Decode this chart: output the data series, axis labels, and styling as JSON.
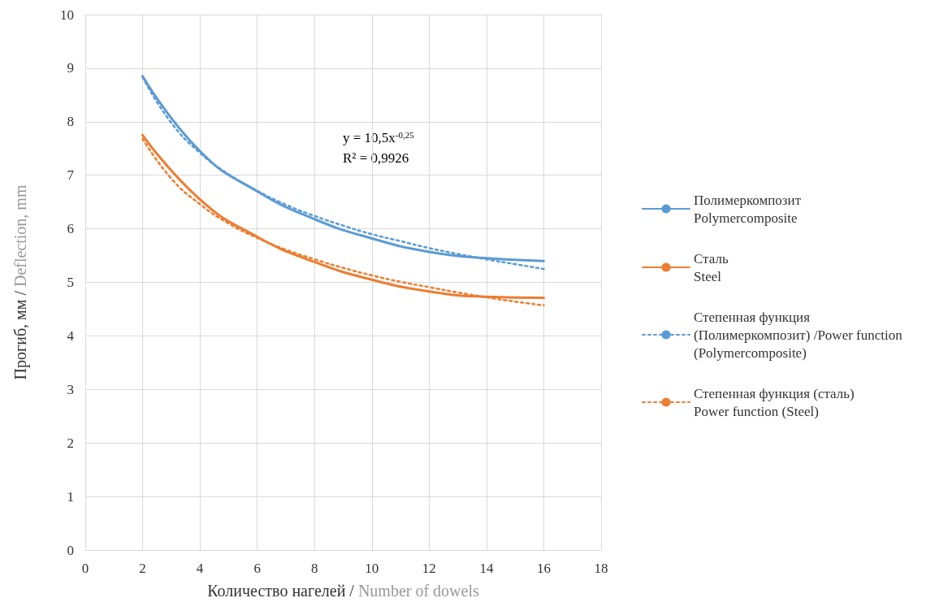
{
  "chart_data": {
    "type": "line",
    "xlabel": "Количество нагелей / Number of dowels",
    "ylabel": "Прогиб, мм / Deflection, mm",
    "xlim": [
      0,
      18
    ],
    "xticks": [
      0,
      2,
      4,
      6,
      8,
      10,
      12,
      14,
      16,
      18
    ],
    "ylim": [
      0,
      10
    ],
    "yticks": [
      0,
      1,
      2,
      3,
      4,
      5,
      6,
      7,
      8,
      9,
      10
    ],
    "grid": true,
    "legend": "right",
    "marker": "none",
    "annotations": [
      "y = 10,5x$^{-0,25}$",
      "R² = 0,9926"
    ],
    "series": [
      {
        "name": "Полимеркомпозит\nPolymercomposite",
        "color": "#5b9bd5",
        "line_style": "solid",
        "x": [
          2,
          4,
          6,
          8,
          10,
          12,
          14,
          16
        ],
        "values": [
          8.85,
          7.45,
          6.7,
          6.18,
          5.82,
          5.57,
          5.45,
          5.4
        ]
      },
      {
        "name": "Сталь\nSteel",
        "color": "#ed7d31",
        "line_style": "solid",
        "x": [
          2,
          4,
          6,
          8,
          10,
          12,
          14,
          16
        ],
        "values": [
          7.75,
          6.55,
          5.85,
          5.38,
          5.05,
          4.83,
          4.73,
          4.71
        ]
      },
      {
        "name": "Степенная функция\n(Полимеркомпозит) /Power function\n(Polymercomposite)",
        "color": "#5b9bd5",
        "line_style": "dotted",
        "x": [
          2,
          3,
          4,
          5,
          6,
          7,
          8,
          9,
          10,
          11,
          12,
          13,
          14,
          15,
          16
        ],
        "values": [
          8.83,
          7.98,
          7.42,
          7.02,
          6.71,
          6.45,
          6.24,
          6.06,
          5.9,
          5.77,
          5.64,
          5.53,
          5.43,
          5.34,
          5.25
        ]
      },
      {
        "name": "Степенная функция (сталь)\nPower function (Steel)",
        "color": "#ed7d31",
        "line_style": "dotted",
        "x": [
          2,
          3,
          4,
          5,
          6,
          7,
          8,
          9,
          10,
          11,
          12,
          13,
          14,
          15,
          16
        ],
        "values": [
          7.68,
          6.94,
          6.46,
          6.1,
          5.83,
          5.61,
          5.43,
          5.27,
          5.13,
          5.01,
          4.91,
          4.81,
          4.72,
          4.64,
          4.57
        ]
      }
    ]
  }
}
